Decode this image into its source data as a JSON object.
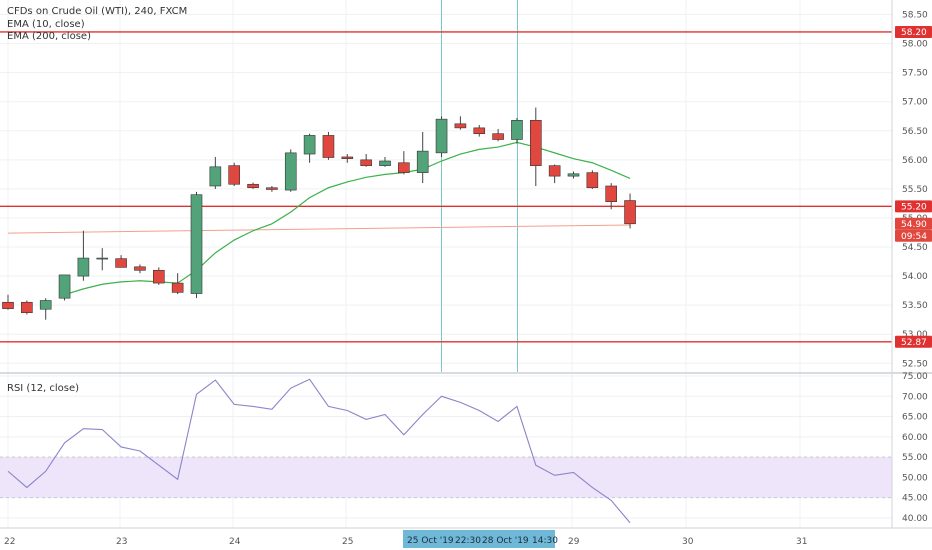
{
  "colors": {
    "up": "#53a37a",
    "down": "#e0483f",
    "wick": "#444444",
    "ema10": "#3cb14a",
    "ema200": "#f3a08f",
    "hline": "#e03131",
    "rsi": "#8a85c9",
    "rsi_band": "#efe5fb",
    "grid": "#eef0f3",
    "cursor": "#7dc7c7",
    "axis_text": "#555555",
    "time_highlight": "#6fb8d8"
  },
  "legend": {
    "title": "CFDs on Crude Oil (WTI), 240, FXCM",
    "ema10": "EMA (10, close)",
    "ema200": "EMA (200, close)",
    "rsi": "RSI (12, close)"
  },
  "price_labels": {
    "level_top": "58.20",
    "level_mid": "55.20",
    "level_close": "54.90",
    "countdown": "09:54",
    "level_bottom": "52.87"
  },
  "time_labels": {
    "left": "25 Oct '19",
    "left_time": "22:30",
    "right": "28 Oct '19",
    "right_time": "14:30"
  },
  "chart_data": [
    {
      "type": "candlestick",
      "title": "CFDs on Crude Oil (WTI), 240, FXCM",
      "y_ticks": [
        "52.50",
        "53.00",
        "53.50",
        "54.00",
        "54.50",
        "55.00",
        "55.50",
        "56.00",
        "56.50",
        "57.00",
        "57.50",
        "58.00",
        "58.50"
      ],
      "x_ticks": [
        "22",
        "23",
        "24",
        "25",
        "29",
        "30",
        "31"
      ],
      "ylim": [
        52.35,
        58.75
      ],
      "candles": [
        {
          "o": 53.55,
          "h": 53.68,
          "l": 53.42,
          "c": 53.44
        },
        {
          "o": 53.55,
          "h": 53.58,
          "l": 53.34,
          "c": 53.37
        },
        {
          "o": 53.43,
          "h": 53.62,
          "l": 53.25,
          "c": 53.58
        },
        {
          "o": 53.62,
          "h": 54.0,
          "l": 53.58,
          "c": 54.02
        },
        {
          "o": 54.0,
          "h": 54.78,
          "l": 53.92,
          "c": 54.31
        },
        {
          "o": 54.31,
          "h": 54.48,
          "l": 54.1,
          "c": 54.31
        },
        {
          "o": 54.3,
          "h": 54.36,
          "l": 54.15,
          "c": 54.15
        },
        {
          "o": 54.16,
          "h": 54.2,
          "l": 54.05,
          "c": 54.1
        },
        {
          "o": 54.1,
          "h": 54.15,
          "l": 53.85,
          "c": 53.88
        },
        {
          "o": 53.88,
          "h": 54.05,
          "l": 53.69,
          "c": 53.72
        },
        {
          "o": 53.7,
          "h": 55.45,
          "l": 53.62,
          "c": 55.4
        },
        {
          "o": 55.55,
          "h": 56.05,
          "l": 55.5,
          "c": 55.88
        },
        {
          "o": 55.9,
          "h": 55.95,
          "l": 55.55,
          "c": 55.58
        },
        {
          "o": 55.58,
          "h": 55.61,
          "l": 55.5,
          "c": 55.52
        },
        {
          "o": 55.52,
          "h": 55.55,
          "l": 55.45,
          "c": 55.49
        },
        {
          "o": 55.48,
          "h": 56.18,
          "l": 55.45,
          "c": 56.12
        },
        {
          "o": 56.1,
          "h": 56.45,
          "l": 55.95,
          "c": 56.42
        },
        {
          "o": 56.42,
          "h": 56.48,
          "l": 56.0,
          "c": 56.04
        },
        {
          "o": 56.05,
          "h": 56.1,
          "l": 55.95,
          "c": 56.02
        },
        {
          "o": 56.0,
          "h": 56.1,
          "l": 55.88,
          "c": 55.9
        },
        {
          "o": 55.9,
          "h": 56.05,
          "l": 55.88,
          "c": 55.98
        },
        {
          "o": 55.95,
          "h": 56.15,
          "l": 55.75,
          "c": 55.78
        },
        {
          "o": 55.78,
          "h": 56.48,
          "l": 55.6,
          "c": 56.15
        },
        {
          "o": 56.12,
          "h": 56.75,
          "l": 56.05,
          "c": 56.7
        },
        {
          "o": 56.62,
          "h": 56.75,
          "l": 56.52,
          "c": 56.55
        },
        {
          "o": 56.55,
          "h": 56.6,
          "l": 56.4,
          "c": 56.45
        },
        {
          "o": 56.45,
          "h": 56.53,
          "l": 56.32,
          "c": 56.35
        },
        {
          "o": 56.35,
          "h": 56.72,
          "l": 56.28,
          "c": 56.68
        },
        {
          "o": 56.68,
          "h": 56.9,
          "l": 55.55,
          "c": 55.9
        },
        {
          "o": 55.9,
          "h": 55.92,
          "l": 55.6,
          "c": 55.72
        },
        {
          "o": 55.72,
          "h": 55.8,
          "l": 55.68,
          "c": 55.76
        },
        {
          "o": 55.78,
          "h": 55.82,
          "l": 55.5,
          "c": 55.52
        },
        {
          "o": 55.55,
          "h": 55.6,
          "l": 55.15,
          "c": 55.28
        },
        {
          "o": 55.3,
          "h": 55.42,
          "l": 54.82,
          "c": 54.9
        }
      ],
      "ema10": [
        null,
        null,
        null,
        53.68,
        53.78,
        53.86,
        53.9,
        53.92,
        53.9,
        53.88,
        54.1,
        54.4,
        54.62,
        54.78,
        54.9,
        55.1,
        55.35,
        55.52,
        55.62,
        55.7,
        55.75,
        55.78,
        55.84,
        55.98,
        56.1,
        56.18,
        56.22,
        56.3,
        56.22,
        56.12,
        56.02,
        55.95,
        55.82,
        55.68
      ],
      "ema200": {
        "x": [
          0,
          33
        ],
        "y": [
          54.74,
          54.88
        ]
      },
      "hlines": [
        58.2,
        55.2,
        52.87
      ]
    },
    {
      "type": "line",
      "title": "RSI (12, close)",
      "y_ticks": [
        "40.00",
        "45.00",
        "50.00",
        "55.00",
        "60.00",
        "65.00",
        "70.00",
        "75.00"
      ],
      "ylim": [
        37.5,
        75.5
      ],
      "band": [
        45,
        55
      ],
      "values": [
        51.5,
        47.5,
        51.5,
        58.5,
        62.0,
        61.8,
        57.5,
        56.5,
        53.0,
        49.5,
        70.5,
        74.0,
        68.0,
        67.5,
        66.8,
        72.0,
        74.2,
        67.5,
        66.5,
        64.3,
        65.5,
        60.5,
        65.5,
        70.0,
        68.5,
        66.5,
        63.8,
        67.5,
        53.0,
        50.5,
        51.2,
        47.5,
        44.3,
        38.8
      ]
    }
  ]
}
